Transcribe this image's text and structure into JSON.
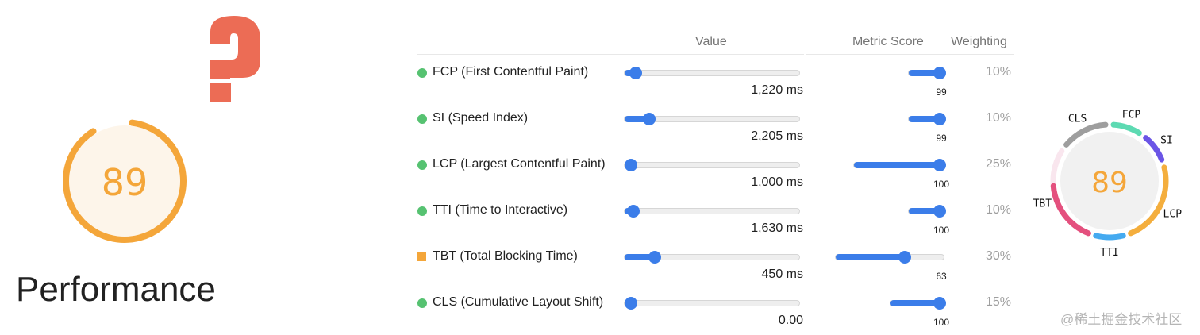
{
  "gauge": {
    "score": "89",
    "score_value": 89,
    "label": "Performance",
    "color": "#f4a63a",
    "bg": "#fdf5ea"
  },
  "question_mark": "?",
  "headers": {
    "value": "Value",
    "metric_score": "Metric Score",
    "weighting": "Weighting"
  },
  "metrics": [
    {
      "short": "FCP",
      "label": "FCP (First Contentful Paint)",
      "value": "1,220 ms",
      "value_level": 0.065,
      "score": "99",
      "score_value": 99,
      "weighting": "10%",
      "weight_value": 10,
      "status": "pass",
      "status_color": "#56c271",
      "ring_color": "#5ddab2"
    },
    {
      "short": "SI",
      "label": "SI (Speed Index)",
      "value": "2,205 ms",
      "value_level": 0.14,
      "score": "99",
      "score_value": 99,
      "weighting": "10%",
      "weight_value": 10,
      "status": "pass",
      "status_color": "#56c271",
      "ring_color": "#6b55e6"
    },
    {
      "short": "LCP",
      "label": "LCP (Largest Contentful Paint)",
      "value": "1,000 ms",
      "value_level": 0.03,
      "score": "100",
      "score_value": 100,
      "weighting": "25%",
      "weight_value": 25,
      "status": "pass",
      "status_color": "#56c271",
      "ring_color": "#f4ae3d"
    },
    {
      "short": "TTI",
      "label": "TTI (Time to Interactive)",
      "value": "1,630 ms",
      "value_level": 0.05,
      "score": "100",
      "score_value": 100,
      "weighting": "10%",
      "weight_value": 10,
      "status": "pass",
      "status_color": "#56c271",
      "ring_color": "#45aaf0"
    },
    {
      "short": "TBT",
      "label": "TBT (Total Blocking Time)",
      "value": "450 ms",
      "value_level": 0.17,
      "score": "63",
      "score_value": 63,
      "weighting": "30%",
      "weight_value": 30,
      "status": "average",
      "status_color": "#f4a63a",
      "ring_color": "#e4507e"
    },
    {
      "short": "CLS",
      "label": "CLS (Cumulative Layout Shift)",
      "value": "0.00",
      "value_level": 0.03,
      "score": "100",
      "score_value": 100,
      "weighting": "15%",
      "weight_value": 15,
      "status": "pass",
      "status_color": "#56c271",
      "ring_color": "#9e9e9e"
    }
  ],
  "donut": {
    "score": "89",
    "score_color": "#f4a63a",
    "bg": "#f1f1f1"
  },
  "watermark": "@稀土掘金技术社区",
  "colors": {
    "accent": "#3b7de9",
    "question": "#ec6c55"
  }
}
